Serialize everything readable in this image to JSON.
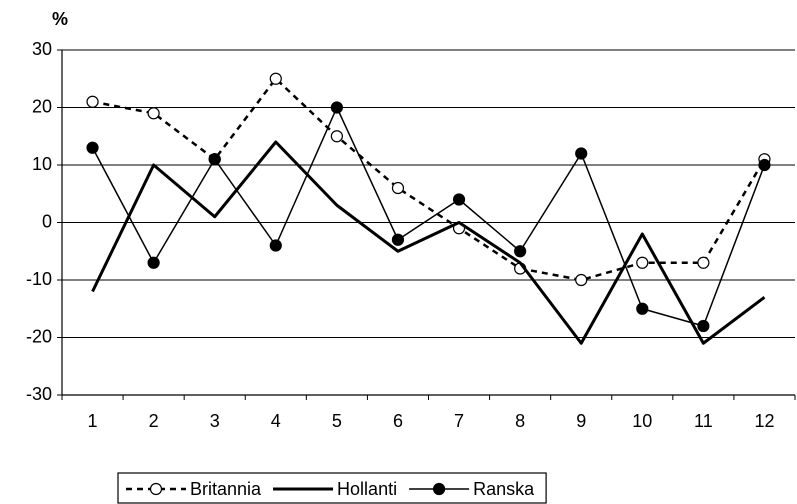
{
  "chart_data": {
    "type": "line",
    "y_label": "%",
    "categories": [
      "1",
      "2",
      "3",
      "4",
      "5",
      "6",
      "7",
      "8",
      "9",
      "10",
      "11",
      "12"
    ],
    "series": [
      {
        "name": "Britannia",
        "color": "#000000",
        "line_style": "dashed",
        "marker": "open-circle",
        "values": [
          21,
          19,
          11,
          25,
          15,
          6,
          -1,
          -8,
          -10,
          -7,
          -7,
          11
        ]
      },
      {
        "name": "Hollanti",
        "color": "#000000",
        "line_style": "thick",
        "marker": "none",
        "values": [
          -12,
          10,
          1,
          14,
          3,
          -5,
          0,
          -7,
          -21,
          -2,
          -21,
          -13
        ]
      },
      {
        "name": "Ranska",
        "color": "#000000",
        "line_style": "thin",
        "marker": "filled-circle",
        "values": [
          13,
          -7,
          11,
          -4,
          20,
          -3,
          4,
          -5,
          12,
          -15,
          -18,
          10
        ]
      }
    ],
    "ylim": [
      -30,
      30
    ],
    "yticks": [
      -30,
      -20,
      -10,
      0,
      10,
      20,
      30
    ],
    "grid": true,
    "legend": "bottom"
  }
}
